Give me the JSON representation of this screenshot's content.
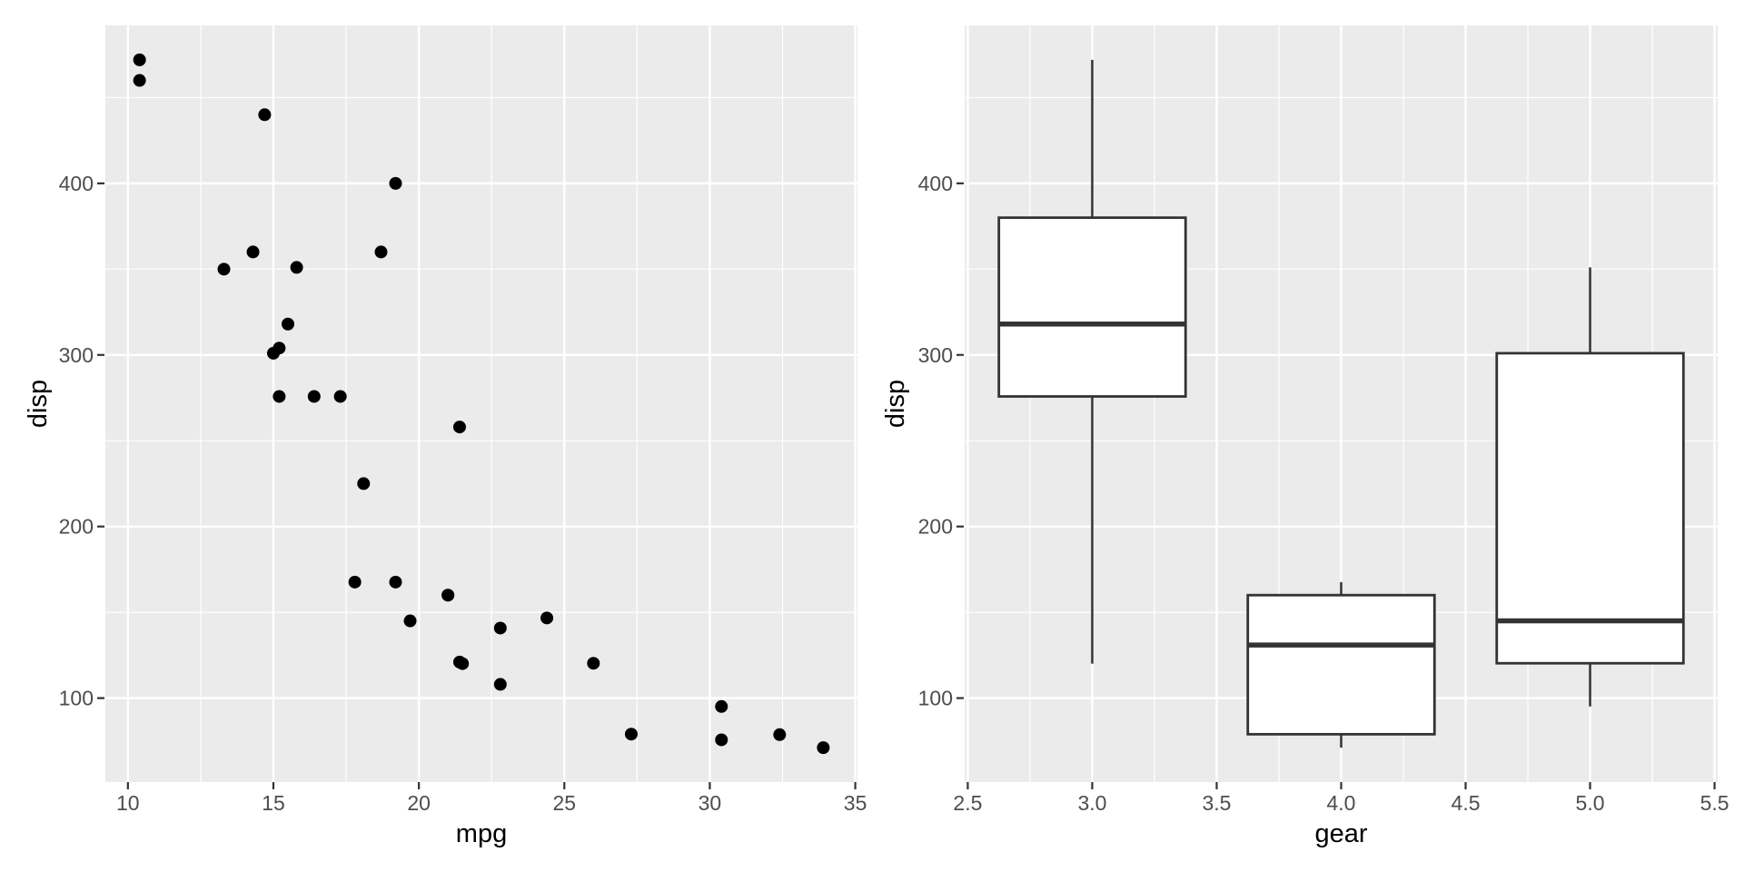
{
  "page": {
    "background": "#FFFFFF"
  },
  "theme": {
    "panel_bg": "#EBEBEB",
    "grid_color": "#FFFFFF",
    "grid_major_width": 2.4,
    "grid_minor_width": 1.2,
    "tick_mark_color": "#333333",
    "tick_label_color": "#4D4D4D",
    "axis_title_color": "#000000",
    "point_color": "#000000",
    "point_radius": 7,
    "box_border_color": "#333333",
    "box_fill": "#FFFFFF"
  },
  "chart_data": [
    {
      "type": "scatter",
      "title": "",
      "xlabel": "mpg",
      "ylabel": "disp",
      "grid": true,
      "legend_position": "none",
      "xlim": [
        9.225,
        35.075
      ],
      "ylim": [
        51.055,
        492.045
      ],
      "x_major_ticks": [
        "10",
        "15",
        "20",
        "25",
        "30",
        "35"
      ],
      "x_minor_ticks": [
        12.5,
        17.5,
        22.5,
        27.5,
        32.5
      ],
      "y_major_ticks": [
        "100",
        "200",
        "300",
        "400"
      ],
      "y_minor_ticks": [
        150,
        250,
        350,
        450
      ],
      "points_xy": [
        [
          21.0,
          160.0
        ],
        [
          21.0,
          160.0
        ],
        [
          22.8,
          108.0
        ],
        [
          21.4,
          258.0
        ],
        [
          18.7,
          360.0
        ],
        [
          18.1,
          225.0
        ],
        [
          14.3,
          360.0
        ],
        [
          24.4,
          146.7
        ],
        [
          22.8,
          140.8
        ],
        [
          19.2,
          167.6
        ],
        [
          17.8,
          167.6
        ],
        [
          16.4,
          275.8
        ],
        [
          17.3,
          275.8
        ],
        [
          15.2,
          275.8
        ],
        [
          10.4,
          472.0
        ],
        [
          10.4,
          460.0
        ],
        [
          14.7,
          440.0
        ],
        [
          32.4,
          78.7
        ],
        [
          30.4,
          75.7
        ],
        [
          33.9,
          71.1
        ],
        [
          21.5,
          120.1
        ],
        [
          15.5,
          318.0
        ],
        [
          15.2,
          304.0
        ],
        [
          13.3,
          350.0
        ],
        [
          19.2,
          400.0
        ],
        [
          27.3,
          79.0
        ],
        [
          26.0,
          120.3
        ],
        [
          30.4,
          95.1
        ],
        [
          15.8,
          351.0
        ],
        [
          19.7,
          145.0
        ],
        [
          15.0,
          301.0
        ],
        [
          21.4,
          121.0
        ]
      ]
    },
    {
      "type": "boxplot",
      "title": "",
      "xlabel": "gear",
      "ylabel": "disp",
      "grid": true,
      "legend_position": "none",
      "xlim": [
        2.4875,
        5.5125
      ],
      "ylim": [
        51.055,
        492.045
      ],
      "x_major_ticks": [
        "2.5",
        "3.0",
        "3.5",
        "4.0",
        "4.5",
        "5.0",
        "5.5"
      ],
      "x_minor_ticks": [
        2.75,
        3.25,
        3.75,
        4.25,
        4.75,
        5.25
      ],
      "y_major_ticks": [
        "100",
        "200",
        "300",
        "400"
      ],
      "y_minor_ticks": [
        150,
        250,
        350,
        450
      ],
      "box_width": 0.75,
      "boxes": [
        {
          "gear": 3,
          "lower_whisker": 120.1,
          "q1": 275.8,
          "median": 318.0,
          "q3": 380.0,
          "upper_whisker": 472.0
        },
        {
          "gear": 4,
          "lower_whisker": 71.1,
          "q1": 78.925,
          "median": 130.9,
          "q3": 160.0,
          "upper_whisker": 167.6
        },
        {
          "gear": 5,
          "lower_whisker": 95.1,
          "q1": 120.3,
          "median": 145.0,
          "q3": 301.0,
          "upper_whisker": 351.0
        }
      ]
    }
  ]
}
